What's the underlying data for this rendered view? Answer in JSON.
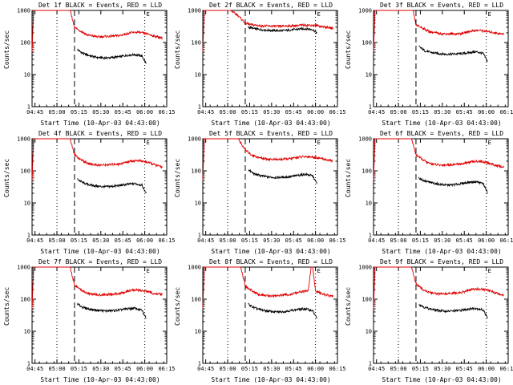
{
  "figure": {
    "colors": {
      "events": "#000000",
      "lld": "#e00000",
      "axes": "#000000",
      "background": "#ffffff"
    }
  },
  "chart_data": [
    {
      "type": "line",
      "title": "Det 1f BLACK = Events, RED = LLD",
      "xlabel": "Start Time (10-Apr-03 04:43:00)",
      "ylabel": "Counts/sec",
      "yscale": "log",
      "ylim": [
        1,
        1000
      ],
      "xlim": [
        0,
        92
      ],
      "x_tick_labels": [
        "04:45",
        "05:00",
        "05:15",
        "05:30",
        "05:45",
        "06:00",
        "06:15"
      ],
      "x_tick_values": [
        2,
        17,
        32,
        47,
        62,
        77,
        92
      ],
      "y_tick_labels": [
        "1",
        "10",
        "100",
        "1000"
      ],
      "markers": {
        "dotted": [
          17,
          77
        ],
        "dashed": [
          29
        ]
      },
      "end_label": "E",
      "series": [
        {
          "name": "Events",
          "x": [
            31,
            35,
            40,
            45,
            50,
            55,
            60,
            65,
            70,
            75,
            78
          ],
          "y": [
            60,
            45,
            38,
            34,
            33,
            34,
            36,
            40,
            42,
            38,
            22
          ]
        },
        {
          "name": "LLD",
          "x": [
            0,
            1,
            26,
            29,
            33,
            38,
            45,
            52,
            60,
            67,
            72,
            78,
            83,
            89
          ],
          "y": [
            50,
            1000,
            1000,
            300,
            230,
            170,
            150,
            155,
            165,
            200,
            210,
            190,
            160,
            140
          ]
        }
      ]
    },
    {
      "type": "line",
      "title": "Det 2f BLACK = Events, RED = LLD",
      "xlabel": "Start Time (10-Apr-03 04:43:00)",
      "ylabel": "Counts/sec",
      "yscale": "log",
      "ylim": [
        1,
        1000
      ],
      "xlim": [
        0,
        92
      ],
      "x_tick_labels": [
        "04:45",
        "05:00",
        "05:15",
        "05:30",
        "05:45",
        "06:00",
        "06:15"
      ],
      "x_tick_values": [
        2,
        17,
        32,
        47,
        62,
        77,
        92
      ],
      "y_tick_labels": [
        "1",
        "10",
        "100",
        "1000"
      ],
      "markers": {
        "dotted": [
          17,
          77
        ],
        "dashed": [
          29
        ]
      },
      "end_label": "E",
      "series": [
        {
          "name": "Events",
          "x": [
            31,
            35,
            40,
            45,
            50,
            55,
            60,
            65,
            70,
            75,
            78
          ],
          "y": [
            300,
            270,
            250,
            240,
            235,
            235,
            245,
            260,
            270,
            255,
            200
          ]
        },
        {
          "name": "LLD",
          "x": [
            0,
            1,
            19,
            24,
            29,
            33,
            40,
            50,
            60,
            70,
            78,
            84,
            89
          ],
          "y": [
            50,
            1000,
            1000,
            700,
            400,
            360,
            330,
            320,
            330,
            350,
            340,
            300,
            280
          ]
        }
      ]
    },
    {
      "type": "line",
      "title": "Det 3f BLACK = Events, RED = LLD",
      "xlabel": "Start Time (10-Apr-03 04:43:00)",
      "ylabel": "Counts/sec",
      "yscale": "log",
      "ylim": [
        1,
        1000
      ],
      "xlim": [
        0,
        92
      ],
      "x_tick_labels": [
        "04:45",
        "05:00",
        "05:15",
        "05:30",
        "05:45",
        "06:00",
        "06:15"
      ],
      "x_tick_values": [
        2,
        17,
        32,
        47,
        62,
        77,
        92
      ],
      "y_tick_labels": [
        "1",
        "10",
        "100",
        "1000"
      ],
      "markers": {
        "dotted": [
          17,
          77
        ],
        "dashed": [
          29
        ]
      },
      "end_label": "E",
      "series": [
        {
          "name": "Events",
          "x": [
            31,
            35,
            40,
            45,
            50,
            55,
            60,
            65,
            70,
            75,
            78
          ],
          "y": [
            75,
            55,
            48,
            45,
            43,
            44,
            45,
            48,
            52,
            45,
            25
          ]
        },
        {
          "name": "LLD",
          "x": [
            0,
            1,
            27,
            29,
            33,
            38,
            45,
            52,
            60,
            67,
            72,
            78,
            83,
            89
          ],
          "y": [
            50,
            1000,
            1000,
            350,
            290,
            220,
            190,
            185,
            190,
            230,
            240,
            220,
            200,
            180
          ]
        }
      ]
    },
    {
      "type": "line",
      "title": "Det 4f BLACK = Events, RED = LLD",
      "xlabel": "Start Time (10-Apr-03 04:43:00)",
      "ylabel": "Counts/sec",
      "yscale": "log",
      "ylim": [
        1,
        1000
      ],
      "xlim": [
        0,
        92
      ],
      "x_tick_labels": [
        "04:45",
        "05:00",
        "05:15",
        "05:30",
        "05:45",
        "06:00",
        "06:15"
      ],
      "x_tick_values": [
        2,
        17,
        32,
        47,
        62,
        77,
        92
      ],
      "y_tick_labels": [
        "1",
        "10",
        "100",
        "1000"
      ],
      "markers": {
        "dotted": [
          17,
          77
        ],
        "dashed": [
          29
        ]
      },
      "end_label": "E",
      "series": [
        {
          "name": "Events",
          "x": [
            31,
            35,
            40,
            45,
            50,
            55,
            60,
            65,
            70,
            75,
            78
          ],
          "y": [
            55,
            42,
            36,
            33,
            32,
            33,
            35,
            38,
            40,
            36,
            20
          ]
        },
        {
          "name": "LLD",
          "x": [
            0,
            1,
            26,
            29,
            33,
            38,
            45,
            52,
            60,
            67,
            72,
            78,
            83,
            89
          ],
          "y": [
            50,
            1000,
            1000,
            320,
            230,
            170,
            150,
            155,
            165,
            200,
            210,
            190,
            160,
            130
          ]
        }
      ]
    },
    {
      "type": "line",
      "title": "Det 5f BLACK = Events, RED = LLD",
      "xlabel": "Start Time (10-Apr-03 04:43:00)",
      "ylabel": "Counts/sec",
      "yscale": "log",
      "ylim": [
        1,
        1000
      ],
      "xlim": [
        0,
        92
      ],
      "x_tick_labels": [
        "04:45",
        "05:00",
        "05:15",
        "05:30",
        "05:45",
        "06:00",
        "06:15"
      ],
      "x_tick_values": [
        2,
        17,
        32,
        47,
        62,
        77,
        92
      ],
      "y_tick_labels": [
        "1",
        "10",
        "100",
        "1000"
      ],
      "markers": {
        "dotted": [
          17,
          77
        ],
        "dashed": [
          29
        ]
      },
      "end_label": "E",
      "series": [
        {
          "name": "Events",
          "x": [
            31,
            35,
            40,
            45,
            50,
            55,
            60,
            65,
            70,
            75,
            78
          ],
          "y": [
            110,
            80,
            70,
            64,
            62,
            63,
            66,
            72,
            78,
            70,
            40
          ]
        },
        {
          "name": "LLD",
          "x": [
            0,
            1,
            24,
            29,
            33,
            38,
            45,
            52,
            60,
            67,
            72,
            78,
            83,
            89
          ],
          "y": [
            50,
            1000,
            1000,
            450,
            320,
            260,
            230,
            225,
            240,
            270,
            280,
            260,
            230,
            200
          ]
        }
      ]
    },
    {
      "type": "line",
      "title": "Det 6f BLACK = Events, RED = LLD",
      "xlabel": "Start Time (10-Apr-03 04:43:00)",
      "ylabel": "Counts/sec",
      "yscale": "log",
      "ylim": [
        1,
        1000
      ],
      "xlim": [
        0,
        92
      ],
      "x_tick_labels": [
        "04:45",
        "05:00",
        "05:15",
        "05:30",
        "05:45",
        "06:00",
        "06:15"
      ],
      "x_tick_values": [
        2,
        17,
        32,
        47,
        62,
        77,
        92
      ],
      "y_tick_labels": [
        "1",
        "10",
        "100",
        "1000"
      ],
      "markers": {
        "dotted": [
          17,
          77
        ],
        "dashed": [
          29
        ]
      },
      "end_label": "E",
      "series": [
        {
          "name": "Events",
          "x": [
            31,
            35,
            40,
            45,
            50,
            55,
            60,
            65,
            70,
            75,
            78
          ],
          "y": [
            60,
            48,
            42,
            38,
            36,
            37,
            40,
            44,
            46,
            40,
            20
          ]
        },
        {
          "name": "LLD",
          "x": [
            0,
            1,
            26,
            29,
            33,
            38,
            45,
            52,
            60,
            67,
            72,
            78,
            83,
            89
          ],
          "y": [
            50,
            1000,
            1000,
            320,
            230,
            170,
            150,
            155,
            165,
            190,
            200,
            180,
            150,
            130
          ]
        }
      ]
    },
    {
      "type": "line",
      "title": "Det 7f BLACK = Events, RED = LLD",
      "xlabel": "Start Time (10-Apr-03 04:43:00)",
      "ylabel": "Counts/sec",
      "yscale": "log",
      "ylim": [
        1,
        1000
      ],
      "xlim": [
        0,
        92
      ],
      "x_tick_labels": [
        "04:45",
        "05:00",
        "05:15",
        "05:30",
        "05:45",
        "06:00",
        "06:15"
      ],
      "x_tick_values": [
        2,
        17,
        32,
        47,
        62,
        77,
        92
      ],
      "y_tick_labels": [
        "1",
        "10",
        "100",
        "1000"
      ],
      "markers": {
        "dotted": [
          17,
          77
        ],
        "dashed": [
          29
        ]
      },
      "end_label": "E",
      "series": [
        {
          "name": "Events",
          "x": [
            31,
            35,
            40,
            45,
            50,
            55,
            60,
            65,
            70,
            75,
            78
          ],
          "y": [
            70,
            55,
            48,
            45,
            43,
            44,
            46,
            50,
            52,
            45,
            25
          ]
        },
        {
          "name": "LLD",
          "x": [
            0,
            1,
            26,
            29,
            33,
            38,
            45,
            52,
            60,
            67,
            72,
            78,
            83,
            89
          ],
          "y": [
            50,
            1000,
            1000,
            280,
            200,
            150,
            135,
            140,
            150,
            185,
            195,
            175,
            150,
            140
          ]
        }
      ]
    },
    {
      "type": "line",
      "title": "Det 8f BLACK = Events, RED = LLD",
      "xlabel": "Start Time (10-Apr-03 04:43:00)",
      "ylabel": "Counts/sec",
      "yscale": "log",
      "ylim": [
        1,
        1000
      ],
      "xlim": [
        0,
        92
      ],
      "x_tick_labels": [
        "04:45",
        "05:00",
        "05:15",
        "05:30",
        "05:45",
        "06:00",
        "06:15"
      ],
      "x_tick_values": [
        2,
        17,
        32,
        47,
        62,
        77,
        92
      ],
      "y_tick_labels": [
        "1",
        "10",
        "100",
        "1000"
      ],
      "markers": {
        "dotted": [
          17,
          77
        ],
        "dashed": [
          29
        ]
      },
      "end_label": "E",
      "series": [
        {
          "name": "Events",
          "x": [
            31,
            35,
            40,
            45,
            50,
            55,
            60,
            65,
            70,
            75,
            78
          ],
          "y": [
            70,
            54,
            46,
            42,
            40,
            41,
            44,
            48,
            50,
            44,
            25
          ]
        },
        {
          "name": "LLD",
          "x": [
            0,
            1,
            26,
            29,
            33,
            38,
            45,
            52,
            60,
            67,
            72,
            74,
            75,
            77,
            78,
            83,
            89
          ],
          "y": [
            50,
            1000,
            1000,
            260,
            190,
            140,
            125,
            130,
            140,
            170,
            180,
            1000,
            1000,
            180,
            170,
            140,
            120
          ]
        }
      ]
    },
    {
      "type": "line",
      "title": "Det 9f BLACK = Events, RED = LLD",
      "xlabel": "Start Time (10-Apr-03 04:43:00)",
      "ylabel": "Counts/sec",
      "yscale": "log",
      "ylim": [
        1,
        1000
      ],
      "xlim": [
        0,
        92
      ],
      "x_tick_labels": [
        "04:45",
        "05:00",
        "05:15",
        "05:30",
        "05:45",
        "06:00",
        "06:15"
      ],
      "x_tick_values": [
        2,
        17,
        32,
        47,
        62,
        77,
        92
      ],
      "y_tick_labels": [
        "1",
        "10",
        "100",
        "1000"
      ],
      "markers": {
        "dotted": [
          17,
          77
        ],
        "dashed": [
          29
        ]
      },
      "end_label": "E",
      "series": [
        {
          "name": "Events",
          "x": [
            31,
            35,
            40,
            45,
            50,
            55,
            60,
            65,
            70,
            75,
            78
          ],
          "y": [
            70,
            55,
            48,
            44,
            42,
            43,
            45,
            50,
            52,
            46,
            25
          ]
        },
        {
          "name": "LLD",
          "x": [
            0,
            1,
            26,
            29,
            33,
            38,
            45,
            52,
            60,
            67,
            72,
            78,
            83,
            89
          ],
          "y": [
            50,
            1000,
            1000,
            300,
            210,
            160,
            145,
            150,
            160,
            200,
            210,
            190,
            160,
            130
          ]
        }
      ]
    }
  ]
}
